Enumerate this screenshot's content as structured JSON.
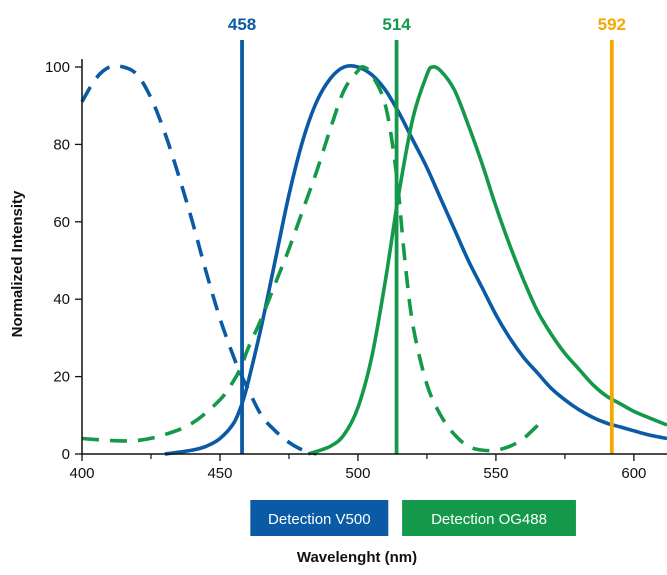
{
  "chart_data": {
    "type": "line",
    "title": "",
    "xlabel": "Wavelenght (nm)",
    "ylabel": "Normalized Intensity",
    "xlim": [
      400,
      612
    ],
    "ylim": [
      0,
      100
    ],
    "x_ticks": [
      400,
      450,
      500,
      550,
      600
    ],
    "x_minor_ticks": [
      425,
      475,
      525,
      575
    ],
    "y_ticks": [
      0,
      20,
      40,
      60,
      80,
      100
    ],
    "grid": false,
    "colors": {
      "blue": "#0a5aa6",
      "green": "#14994a",
      "orange": "#f5a800"
    },
    "laser_lines": [
      {
        "label": "458",
        "x": 458,
        "color": "#0a5aa6"
      },
      {
        "label": "514",
        "x": 514,
        "color": "#14994a"
      },
      {
        "label": "592",
        "x": 592,
        "color": "#f5a800"
      }
    ],
    "detection_bands": [
      {
        "label": "Detection V500",
        "x_start": 461,
        "x_end": 511,
        "color": "#0a5aa6"
      },
      {
        "label": "Detection OG488",
        "x_start": 516,
        "x_end": 579,
        "color": "#14994a"
      }
    ],
    "series": [
      {
        "id": "v500-excitation",
        "color": "#0a5aa6",
        "dashed": true,
        "x": [
          400,
          405,
          410,
          415,
          420,
          425,
          430,
          435,
          440,
          445,
          450,
          455,
          458,
          460,
          465,
          470,
          475,
          480,
          485
        ],
        "y": [
          91,
          97,
          100,
          100,
          98,
          92,
          83,
          72,
          60,
          47,
          35,
          25,
          20,
          17,
          10,
          6,
          3,
          1,
          0
        ]
      },
      {
        "id": "v500-emission",
        "color": "#0a5aa6",
        "dashed": false,
        "x": [
          430,
          440,
          445,
          450,
          455,
          458,
          460,
          465,
          470,
          475,
          480,
          485,
          490,
          495,
          500,
          505,
          510,
          515,
          520,
          525,
          530,
          535,
          540,
          545,
          550,
          555,
          560,
          565,
          570,
          575,
          580,
          585,
          590,
          595,
          600,
          605,
          612
        ],
        "y": [
          0,
          1,
          2,
          4,
          8,
          13,
          18,
          33,
          50,
          67,
          81,
          91,
          97,
          100,
          100,
          98,
          94,
          88,
          81,
          74,
          66,
          58,
          50,
          43,
          36,
          30,
          25,
          21,
          17,
          14,
          11.5,
          9.5,
          8,
          7,
          6,
          5,
          4
        ]
      },
      {
        "id": "og488-excitation",
        "color": "#14994a",
        "dashed": true,
        "x": [
          400,
          410,
          420,
          430,
          440,
          450,
          455,
          458,
          460,
          465,
          470,
          475,
          480,
          485,
          490,
          495,
          500,
          502,
          505,
          510,
          514,
          517,
          520,
          525,
          530,
          535,
          540,
          545,
          550,
          555,
          560,
          566
        ],
        "y": [
          4,
          3.5,
          3.5,
          5,
          8,
          14,
          19,
          23,
          27,
          35,
          44,
          53,
          63,
          73,
          84,
          94,
          99,
          100,
          98,
          90,
          72,
          50,
          33,
          18,
          10,
          5,
          2,
          1,
          1,
          2,
          4,
          8
        ]
      },
      {
        "id": "og488-emission",
        "color": "#14994a",
        "dashed": false,
        "x": [
          482,
          490,
          495,
          500,
          505,
          510,
          515,
          520,
          525,
          527,
          530,
          535,
          540,
          545,
          550,
          555,
          560,
          565,
          570,
          575,
          580,
          585,
          590,
          595,
          600,
          605,
          612
        ],
        "y": [
          0,
          2,
          5,
          12,
          25,
          45,
          68,
          87,
          98,
          100,
          99,
          94,
          85,
          75,
          64,
          54,
          45,
          37,
          31,
          26,
          22,
          18,
          15,
          13,
          11,
          9.5,
          7.5
        ]
      }
    ]
  }
}
